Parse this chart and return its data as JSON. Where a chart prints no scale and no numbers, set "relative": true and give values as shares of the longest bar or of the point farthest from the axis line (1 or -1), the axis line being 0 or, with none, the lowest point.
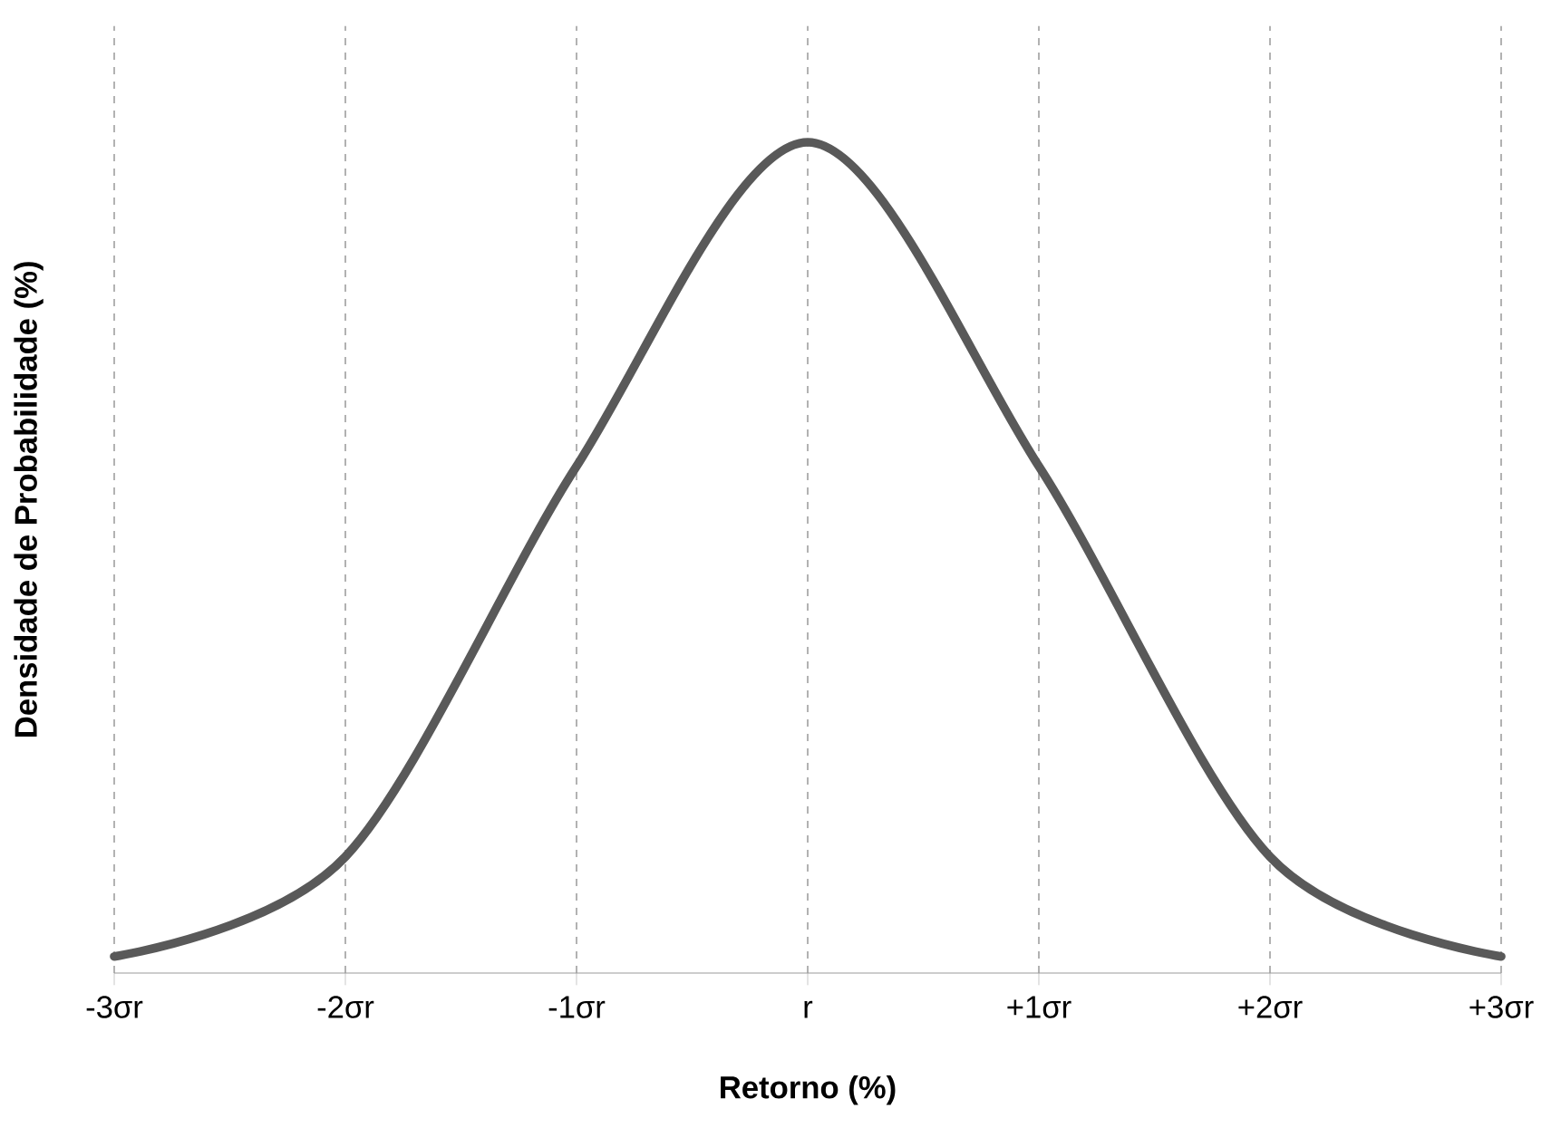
{
  "chart_data": {
    "type": "line",
    "xlabel": "Retorno (%)",
    "ylabel": "Densidade de Probabilidade  (%)",
    "categories": [
      "-3σr",
      "-2σr",
      "-1σr",
      "r",
      "+1σr",
      "+2σr",
      "+3σr"
    ],
    "series": [
      {
        "color": "#595959",
        "values": [
          0.02,
          0.14,
          0.61,
          1,
          0.61,
          0.14,
          0.02
        ]
      }
    ],
    "relative": true,
    "grid": "x",
    "tick_labels": "x",
    "marker": "none",
    "line_style": "solid"
  }
}
